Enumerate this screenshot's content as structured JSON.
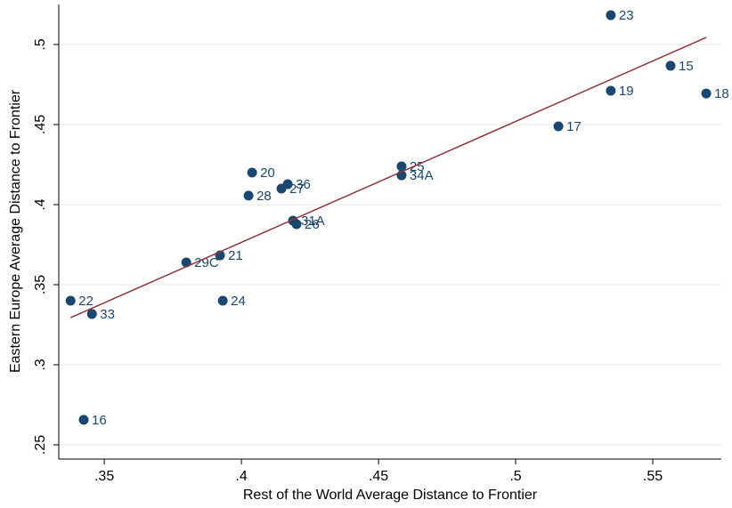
{
  "chart_data": {
    "type": "scatter",
    "x_label": "Rest of the World Average Distance to Frontier",
    "y_label": "Eastern Europe Average Distance to Frontier",
    "labels": [
      "23",
      "15",
      "19",
      "18",
      "17",
      "25",
      "34A",
      "20",
      "36",
      "27",
      "28",
      "31A",
      "26",
      "21",
      "29C",
      "24",
      "22",
      "33",
      "16"
    ],
    "x": [
      0.5347,
      0.5565,
      0.5347,
      0.5695,
      0.5156,
      0.4584,
      0.4584,
      0.4039,
      0.4169,
      0.4146,
      0.4026,
      0.4188,
      0.4201,
      0.3922,
      0.3799,
      0.3932,
      0.3377,
      0.3455,
      0.3425
    ],
    "values": [
      0.5183,
      0.4867,
      0.4711,
      0.4694,
      0.4489,
      0.4239,
      0.4183,
      0.42,
      0.4128,
      0.41,
      0.4056,
      0.39,
      0.3878,
      0.3683,
      0.3639,
      0.34,
      0.34,
      0.3317,
      0.2656
    ],
    "color": "#1a476f",
    "fit_line": {
      "x": [
        0.3377,
        0.5695
      ],
      "y": [
        0.3294,
        0.5044
      ],
      "color": "#90353b"
    },
    "xlim": [
      0.3334,
      0.575
    ],
    "ylim": [
      0.2411,
      0.525
    ],
    "xticks": [
      {
        "value": 0.35,
        "label": ".35"
      },
      {
        "value": 0.4,
        "label": ".4"
      },
      {
        "value": 0.45,
        "label": ".45"
      },
      {
        "value": 0.5,
        "label": ".5"
      },
      {
        "value": 0.55,
        "label": ".55"
      }
    ],
    "yticks": [
      {
        "value": 0.25,
        "label": ".25"
      },
      {
        "value": 0.3,
        "label": ".3"
      },
      {
        "value": 0.35,
        "label": ".35"
      },
      {
        "value": 0.4,
        "label": ".4"
      },
      {
        "value": 0.45,
        "label": ".45"
      },
      {
        "value": 0.5,
        "label": ".5"
      }
    ],
    "grid": true
  }
}
